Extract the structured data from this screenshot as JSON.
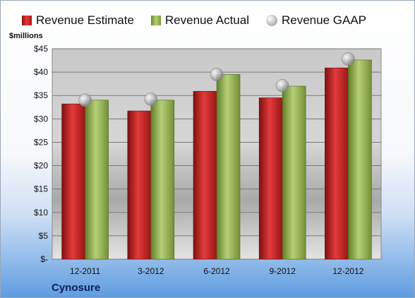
{
  "legend": {
    "estimate_label": "Revenue Estimate",
    "actual_label": "Revenue Actual",
    "gaap_label": "Revenue GAAP"
  },
  "units_label": "$millions",
  "company_label": "Cynosure",
  "colors": {
    "estimate": "#c42a2a",
    "actual": "#96b55a",
    "gaap": "#b8b8b8"
  },
  "chart_data": {
    "type": "bar",
    "categories": [
      "12-2011",
      "3-2012",
      "6-2012",
      "9-2012",
      "12-2012"
    ],
    "series": [
      {
        "name": "Revenue Estimate",
        "values": [
          33.2,
          31.7,
          35.9,
          34.5,
          40.9
        ]
      },
      {
        "name": "Revenue Actual",
        "values": [
          34.0,
          34.0,
          39.5,
          37.0,
          42.6
        ]
      },
      {
        "name": "Revenue GAAP",
        "values": [
          34.0,
          34.2,
          39.5,
          37.1,
          42.8
        ]
      }
    ],
    "ylabel": "$millions",
    "ylim": [
      0,
      45
    ],
    "yticks": [
      0,
      5,
      10,
      15,
      20,
      25,
      30,
      35,
      40,
      45
    ],
    "ytick_labels": [
      "$-",
      "$5",
      "$10",
      "$15",
      "$20",
      "$25",
      "$30",
      "$35",
      "$40",
      "$45"
    ],
    "grid": true,
    "legend_position": "top"
  }
}
